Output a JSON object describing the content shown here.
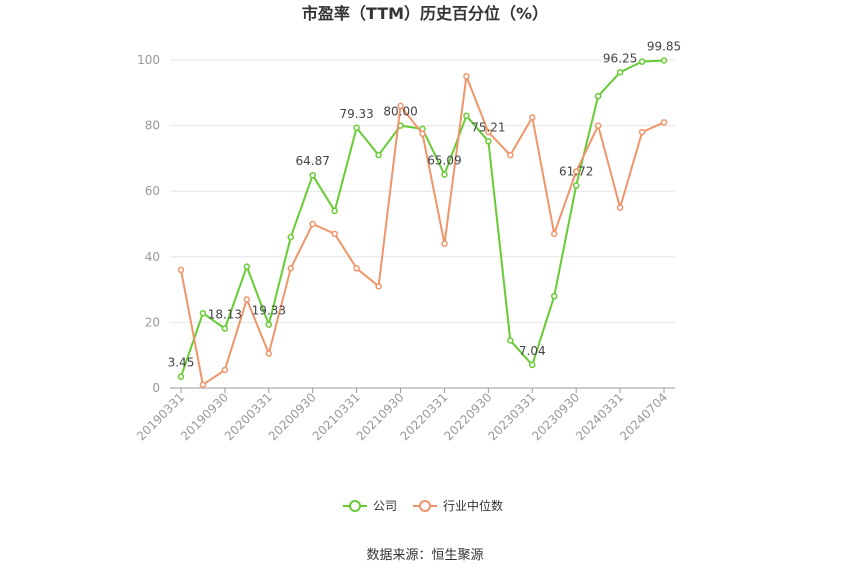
{
  "chart_data": {
    "type": "line",
    "title": "市盈率（TTM）历史百分位（%）",
    "ylim": [
      0,
      100
    ],
    "yticks": [
      0,
      20,
      40,
      60,
      80,
      100
    ],
    "x": [
      "20190331",
      "20190630",
      "20190930",
      "20191231",
      "20200331",
      "20200630",
      "20200930",
      "20201231",
      "20210331",
      "20210630",
      "20210930",
      "20211231",
      "20220331",
      "20220630",
      "20220930",
      "20221230",
      "20230331",
      "20230630",
      "20230930",
      "20231229",
      "20240331",
      "20240628",
      "20240704"
    ],
    "x_tick_labels": [
      "20190331",
      "20190930",
      "20200331",
      "20200930",
      "20210331",
      "20210930",
      "20220331",
      "20220930",
      "20230331",
      "20230930",
      "20240331",
      "20240704"
    ],
    "series": [
      {
        "name": "公司",
        "color": "#66cc33",
        "values": [
          3.45,
          22.8,
          18.13,
          37.0,
          19.33,
          46.0,
          64.87,
          54.0,
          79.33,
          71.0,
          80.0,
          79.0,
          65.09,
          83.0,
          75.21,
          14.5,
          7.04,
          28.0,
          61.72,
          89.0,
          96.25,
          99.5,
          99.85
        ],
        "labels": [
          "3.45",
          null,
          "18.13",
          null,
          "19.33",
          null,
          "64.87",
          null,
          "79.33",
          null,
          "80.00",
          null,
          "65.09",
          null,
          "75.21",
          null,
          "7.04",
          null,
          "61.72",
          null,
          "96.25",
          null,
          "99.85"
        ]
      },
      {
        "name": "行业中位数",
        "color": "#f0956a",
        "values": [
          36.0,
          1.0,
          5.5,
          27.0,
          10.5,
          36.5,
          50.0,
          47.0,
          36.5,
          31.0,
          86.0,
          77.5,
          44.0,
          95.0,
          78.0,
          71.0,
          82.5,
          47.0,
          66.0,
          80.0,
          55.0,
          78.0,
          81.0
        ]
      }
    ],
    "legend_position": "bottom",
    "source": "数据来源：恒生聚源"
  }
}
